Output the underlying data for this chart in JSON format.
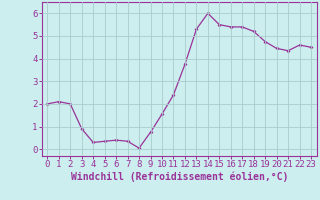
{
  "x": [
    0,
    1,
    2,
    3,
    4,
    5,
    6,
    7,
    8,
    9,
    10,
    11,
    12,
    13,
    14,
    15,
    16,
    17,
    18,
    19,
    20,
    21,
    22,
    23
  ],
  "y": [
    2.0,
    2.1,
    2.0,
    0.9,
    0.3,
    0.35,
    0.4,
    0.35,
    0.05,
    0.75,
    1.55,
    2.4,
    3.75,
    5.3,
    6.0,
    5.5,
    5.4,
    5.4,
    5.2,
    4.75,
    4.45,
    4.35,
    4.6,
    4.5
  ],
  "line_color": "#993399",
  "marker": "D",
  "marker_size": 2.0,
  "bg_color": "#cceeee",
  "grid_color": "#aacccc",
  "axis_color": "#993399",
  "xlabel": "Windchill (Refroidissement éolien,°C)",
  "xlabel_fontsize": 7,
  "tick_fontsize": 6.5,
  "xlim": [
    -0.5,
    23.5
  ],
  "ylim": [
    -0.3,
    6.5
  ],
  "yticks": [
    0,
    1,
    2,
    3,
    4,
    5,
    6
  ],
  "xticks": [
    0,
    1,
    2,
    3,
    4,
    5,
    6,
    7,
    8,
    9,
    10,
    11,
    12,
    13,
    14,
    15,
    16,
    17,
    18,
    19,
    20,
    21,
    22,
    23
  ]
}
